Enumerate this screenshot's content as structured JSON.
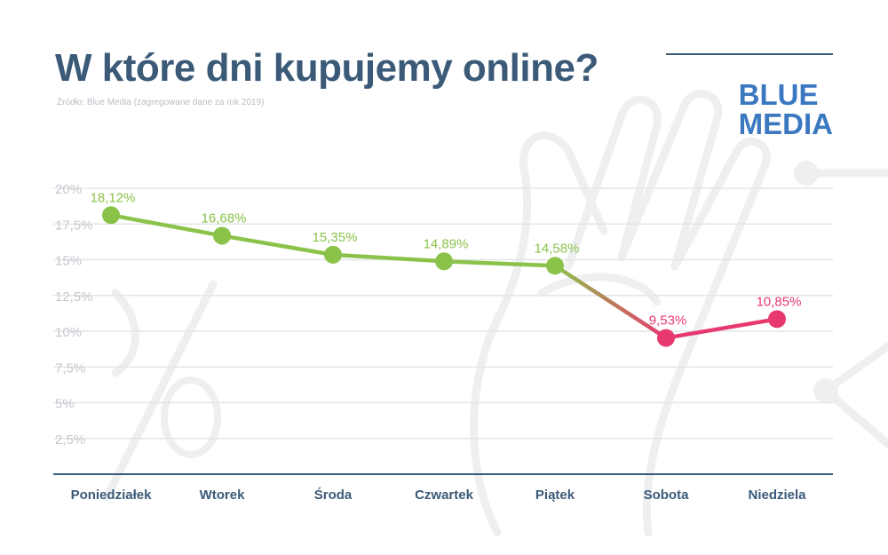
{
  "header": {
    "title": "W które dni kupujemy online?",
    "subtitle": "Źródło: Blue Media (zagregowane dane za rok 2019)"
  },
  "brand": {
    "line1": "BLUE",
    "line2": "MEDIA",
    "color": "#3b78c0"
  },
  "colors": {
    "title": "#3b5a78",
    "green": "#8bc34a",
    "pink": "#e8396f",
    "grid": "#e3e5e8",
    "axis": "#3b5a78"
  },
  "chart_data": {
    "type": "line",
    "categories": [
      "Poniedziałek",
      "Wtorek",
      "Środa",
      "Czwartek",
      "Piątek",
      "Sobota",
      "Niedziela"
    ],
    "values": [
      18.12,
      16.68,
      15.35,
      14.89,
      14.58,
      9.53,
      10.85
    ],
    "data_labels": [
      "18,12%",
      "16,68%",
      "15,35%",
      "14,89%",
      "14,58%",
      "9,53%",
      "10,85%"
    ],
    "point_colors": [
      "#8bc34a",
      "#8bc34a",
      "#8bc34a",
      "#8bc34a",
      "#8bc34a",
      "#e8396f",
      "#e8396f"
    ],
    "ylim": [
      0,
      20
    ],
    "y_ticks": [
      2.5,
      5,
      7.5,
      10,
      12.5,
      15,
      17.5,
      20
    ],
    "y_tick_labels": [
      "2,5%",
      "5%",
      "7,5%",
      "10%",
      "12,5%",
      "15%",
      "17,5%",
      "20%"
    ],
    "grid": true,
    "legend": "none"
  }
}
